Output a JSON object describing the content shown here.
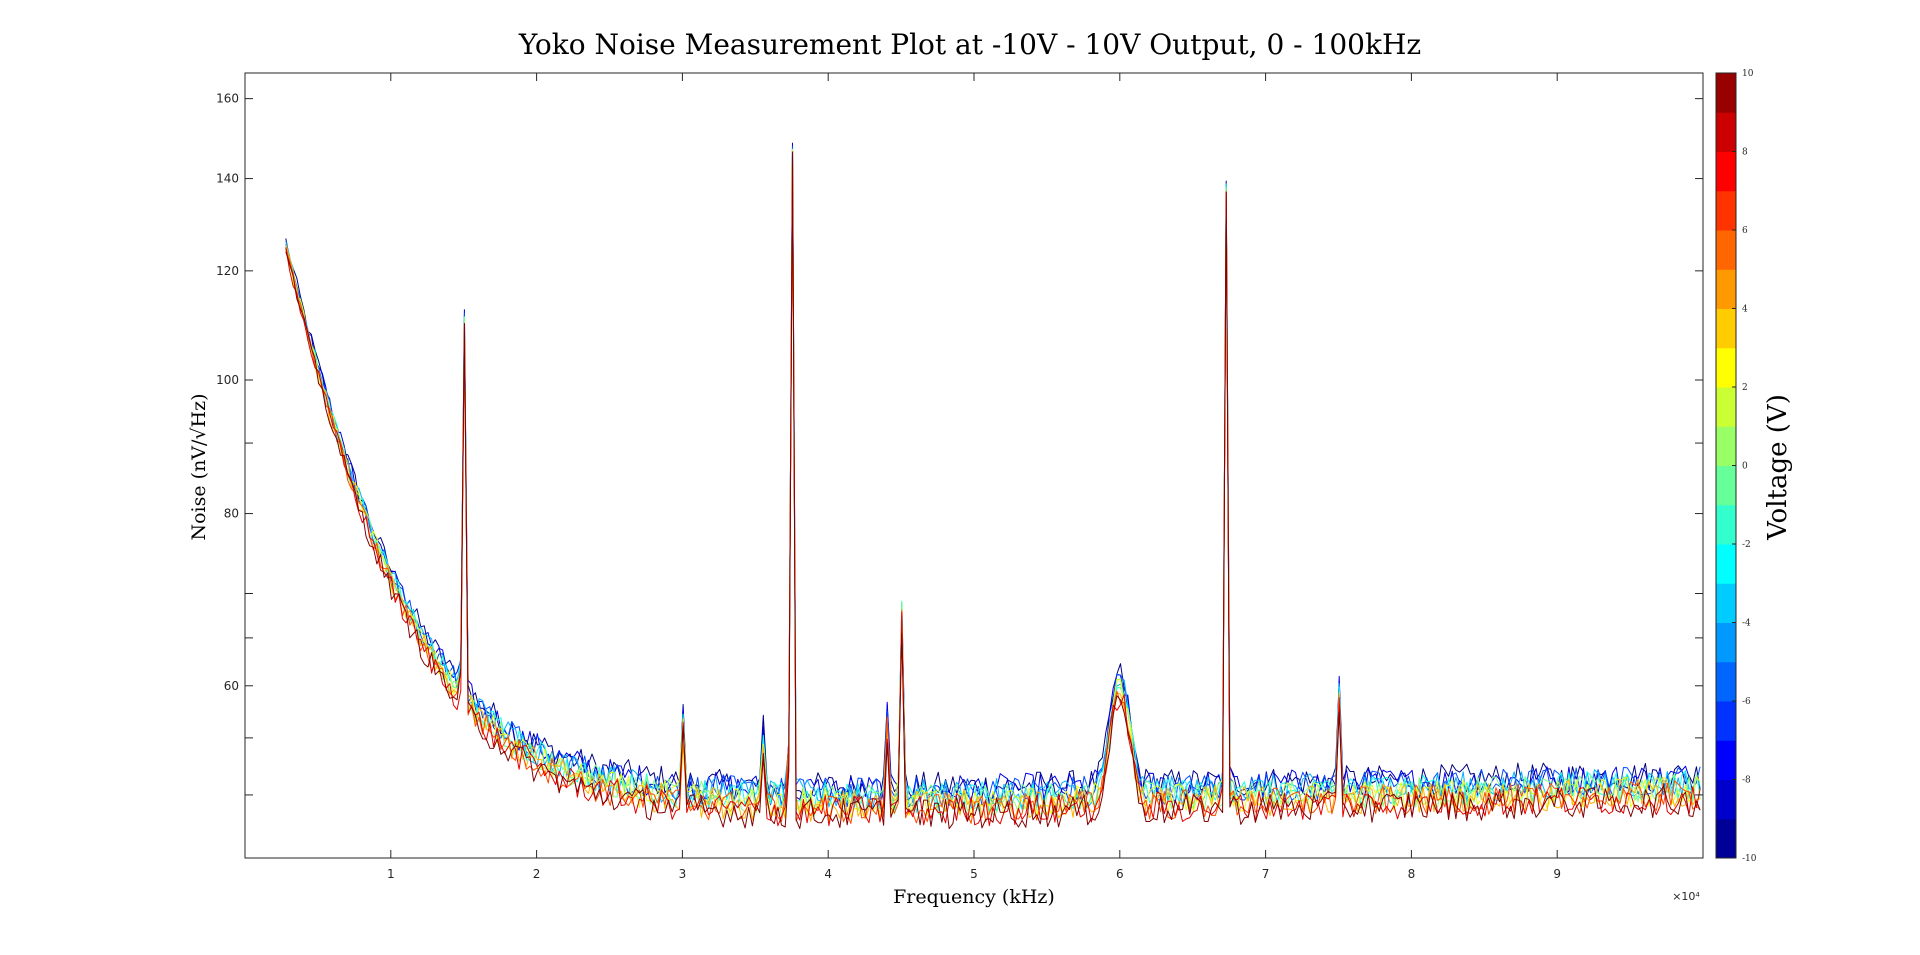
{
  "chart_data": {
    "type": "line",
    "title": "Yoko Noise Measurement Plot at -10V - 10V Output, 0 - 100kHz",
    "xlabel": "Frequency (kHz)",
    "ylabel": "Noise (nV/√Hz)",
    "x_multiplier_label": "×10⁴",
    "xlim": [
      0,
      100000
    ],
    "ylim": [
      45,
      167
    ],
    "yscale": "log",
    "x_ticks": [
      10000,
      20000,
      30000,
      40000,
      50000,
      60000,
      70000,
      80000,
      90000
    ],
    "x_tick_labels": [
      "1",
      "2",
      "3",
      "4",
      "5",
      "6",
      "7",
      "8",
      "9"
    ],
    "y_ticks": [
      60,
      80,
      100,
      120,
      140,
      160
    ],
    "y_tick_labels": [
      "60",
      "80",
      "100",
      "120",
      "140",
      "160"
    ],
    "y_minor_ticks": [
      50,
      55,
      65,
      70,
      90
    ],
    "grid": false,
    "colorbar": {
      "label": "Voltage (V)",
      "range": [
        -10,
        10
      ],
      "ticks": [
        -10,
        -8,
        -6,
        -4,
        -2,
        0,
        2,
        4,
        6,
        8,
        10
      ],
      "tick_labels": [
        "-10",
        "-8",
        "-6",
        "-4",
        "-2",
        "0",
        "2",
        "4",
        "6",
        "8",
        "10"
      ],
      "colormap": "jet",
      "levels": 20
    },
    "series_voltages": [
      -10,
      -8,
      -6,
      -4,
      -2,
      0,
      2,
      4,
      6,
      8,
      10
    ],
    "baseline": {
      "start_x": 2800,
      "start_y": 124,
      "decay_floor": 47.5,
      "decay_constant_hz": 6000,
      "floor_slope_per_10khz": 0.2
    },
    "peaks": [
      {
        "x": 15000,
        "y": 111,
        "voltages": "all"
      },
      {
        "x": 30000,
        "y": 55,
        "voltages": "all"
      },
      {
        "x": 35500,
        "y": 54,
        "voltages": "all"
      },
      {
        "x": 37500,
        "y": 167,
        "voltages": "all"
      },
      {
        "x": 44000,
        "y": 56,
        "voltages": "all"
      },
      {
        "x": 45000,
        "y": 70,
        "voltages": "all"
      },
      {
        "x": 60000,
        "y": 59,
        "voltages": "all",
        "broad": true
      },
      {
        "x": 67300,
        "y": 135,
        "voltages": "all"
      },
      {
        "x": 75000,
        "y": 59,
        "voltages": "all"
      }
    ]
  }
}
